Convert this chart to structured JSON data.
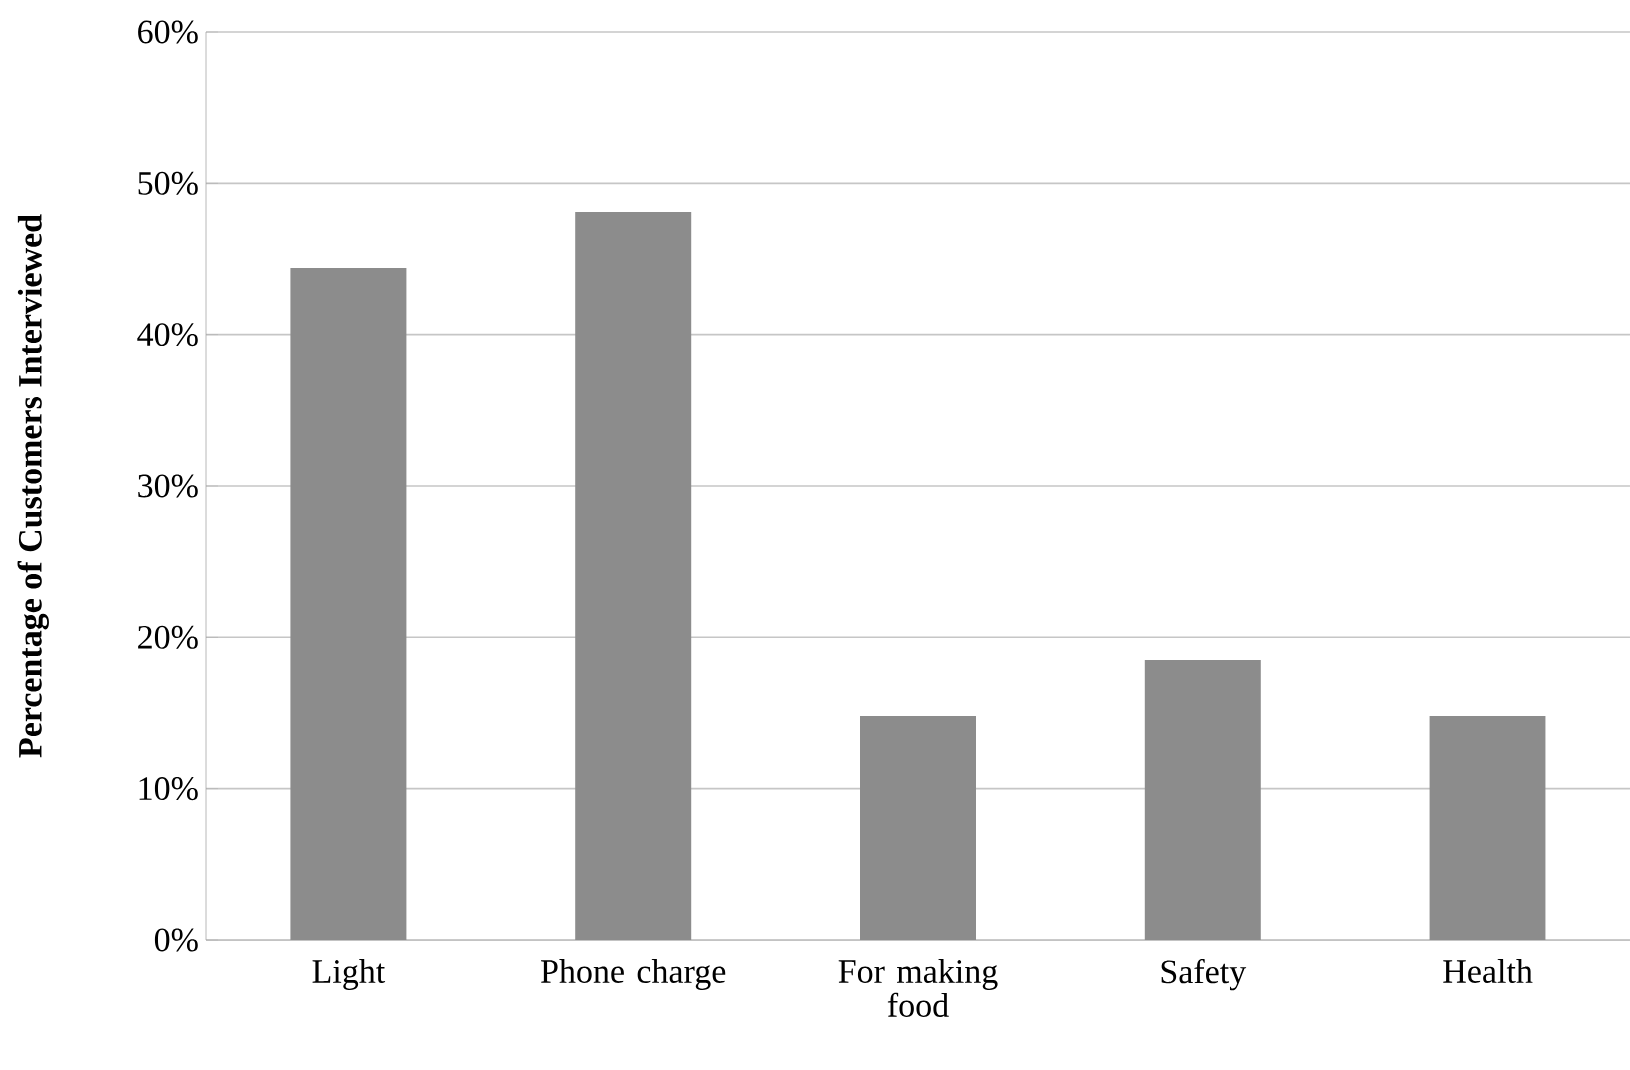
{
  "chart_data": {
    "type": "bar",
    "ylabel": "Percentage of Customers Interviewed",
    "categories": [
      "Light",
      "Phone charge",
      "For making food",
      "Safety",
      "Health"
    ],
    "values": [
      44.4,
      48.1,
      14.8,
      18.5,
      14.8
    ],
    "color": "#8c8c8c",
    "ylim": [
      0,
      60
    ],
    "yticks": [
      {
        "value": 0,
        "label": "0%"
      },
      {
        "value": 10,
        "label": "10%"
      },
      {
        "value": 20,
        "label": "20%"
      },
      {
        "value": 30,
        "label": "30%"
      },
      {
        "value": 40,
        "label": "40%"
      },
      {
        "value": 50,
        "label": "50%"
      },
      {
        "value": 60,
        "label": "60%"
      }
    ],
    "grid": "y"
  }
}
